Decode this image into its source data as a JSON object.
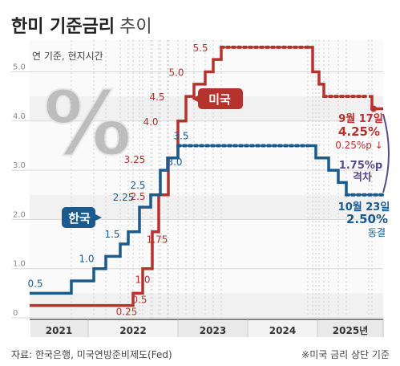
{
  "header": {
    "title_bold": "한미 기준금리",
    "title_light": "추이",
    "subtitle": "연 기준, 현지시간"
  },
  "decor": {
    "percent_glyph": "%"
  },
  "footer": {
    "source": "자료: 한국은행, 미국연방준비제도(Fed)",
    "note": "※미국 금리 상단 기준"
  },
  "colors": {
    "korea": "#1a5b8f",
    "usa": "#b5322d",
    "grid": "#d9d9d9",
    "bg_band": "#f0f0f0",
    "gap": "#5b4a8a"
  },
  "chart_data": {
    "type": "line",
    "xlabel": "",
    "ylabel": "",
    "x_ticks": [
      "2021",
      "2022",
      "2023",
      "2024",
      "2025년"
    ],
    "y_ticks": [
      "0",
      "1.0",
      "2.0",
      "3.0",
      "4.0",
      "5.0"
    ],
    "ylim": [
      0,
      5.5
    ],
    "grid": true,
    "series": [
      {
        "name": "미국",
        "values": [
          0.25,
          0.5,
          1.0,
          1.75,
          2.5,
          3.25,
          4.0,
          4.5,
          4.75,
          5.0,
          5.25,
          5.5,
          5.5,
          5.5,
          5.0,
          4.75,
          4.5,
          4.5,
          4.25
        ],
        "label_values": [
          "0.25",
          "0.5",
          "1.0",
          "1.75",
          "2.5",
          "3.25",
          "4.0",
          "4.5",
          "5.0",
          "5.5"
        ]
      },
      {
        "name": "한국",
        "values": [
          0.5,
          0.75,
          1.0,
          1.25,
          1.5,
          1.75,
          2.25,
          2.5,
          3.0,
          3.25,
          3.5,
          3.5,
          3.5,
          3.25,
          3.0,
          2.75,
          2.5,
          2.5
        ],
        "label_values": [
          "0.5",
          "1.0",
          "1.5",
          "2.25",
          "2.5",
          "3.0",
          "3.5"
        ]
      }
    ],
    "annotations": {
      "usa_latest": {
        "date": "9월 17일",
        "value": "4.25%",
        "change": "0.25%p ↓"
      },
      "korea_latest": {
        "date": "10월 23일",
        "value": "2.50%",
        "change": "동결"
      },
      "gap": {
        "value": "1.75%p",
        "label": "격차"
      }
    }
  }
}
